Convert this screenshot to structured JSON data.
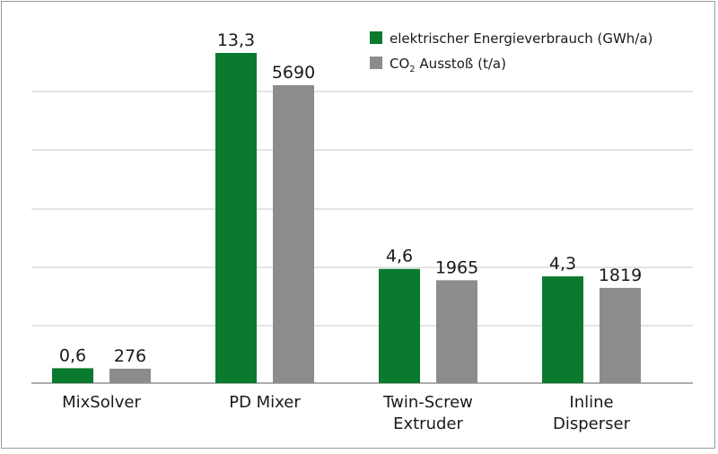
{
  "chart_data": {
    "type": "bar",
    "categories": [
      [
        "MixSolver"
      ],
      [
        "PD Mixer"
      ],
      [
        "Twin-Screw",
        "Extruder"
      ],
      [
        "Inline",
        "Disperser"
      ]
    ],
    "series": [
      {
        "name": "elektrischer Energieverbrauch (GWh/a)",
        "color": "#0a7a2e",
        "values": [
          0.6,
          13.3,
          4.6,
          4.3
        ],
        "labels": [
          "0,6",
          "13,3",
          "4,6",
          "4,3"
        ]
      },
      {
        "name_parts": [
          "CO",
          "2",
          " Ausstoß (t/a)"
        ],
        "color": "#8c8c8c",
        "values": [
          276,
          5690,
          1965,
          1819
        ],
        "labels": [
          "276",
          "5690",
          "1965",
          "1819"
        ]
      }
    ],
    "ylim_series1": [
      0,
      14
    ],
    "ylim_series2": [
      0,
      6000
    ],
    "grid": true,
    "legend": "top-right",
    "axis_labels_shown": false
  }
}
